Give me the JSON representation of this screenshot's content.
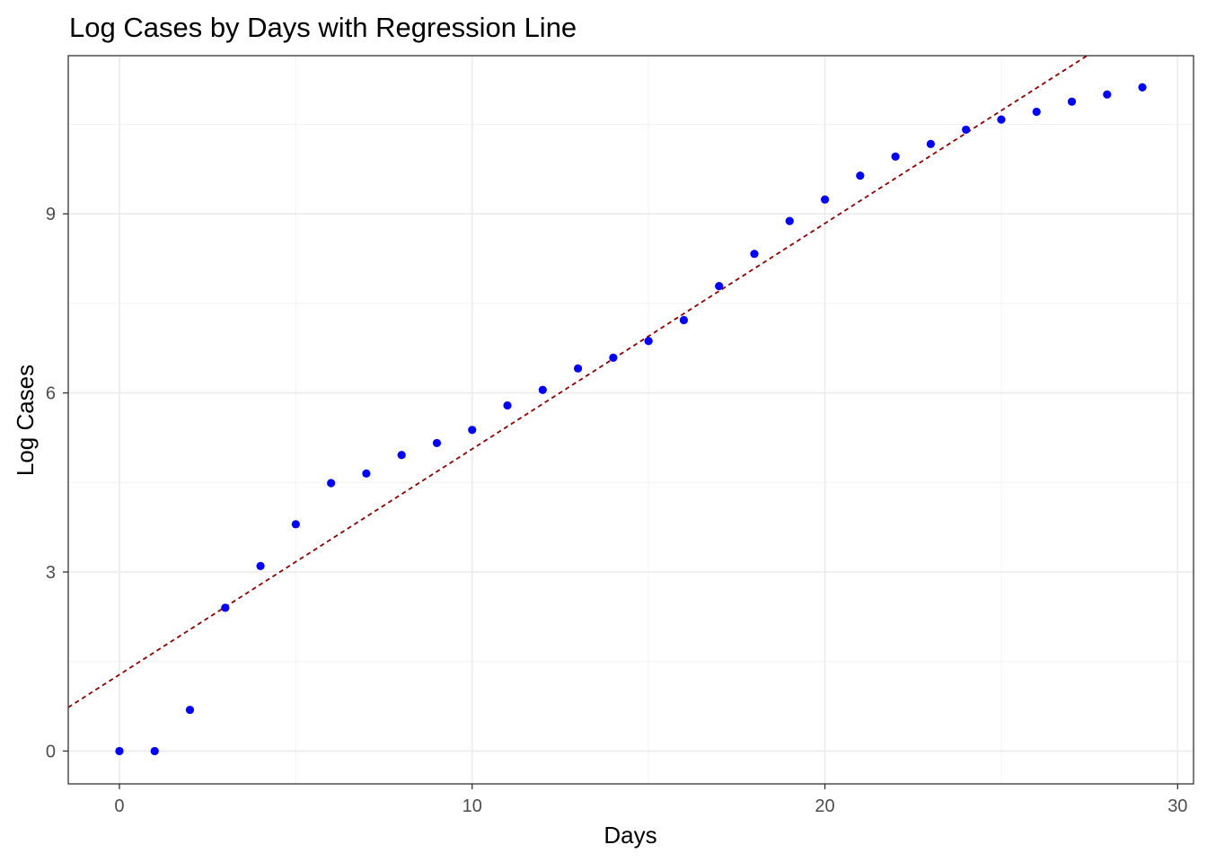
{
  "chart_data": {
    "type": "scatter",
    "title": "Log Cases by Days with Regression Line",
    "xlabel": "Days",
    "ylabel": "Log Cases",
    "xlim": [
      -1.45,
      30.45
    ],
    "ylim": [
      -0.55,
      11.65
    ],
    "xticks": [
      0,
      10,
      20,
      30
    ],
    "yticks": [
      0,
      3,
      6,
      9
    ],
    "x_tick_labels": [
      "0",
      "10",
      "20",
      "30"
    ],
    "y_tick_labels": [
      "0",
      "3",
      "6",
      "9"
    ],
    "grid": true,
    "point_color": "#0000ff",
    "line_color": "#8b0000",
    "points": [
      {
        "x": 0,
        "y": 0.0
      },
      {
        "x": 1,
        "y": 0.0
      },
      {
        "x": 2,
        "y": 0.69
      },
      {
        "x": 3,
        "y": 2.4
      },
      {
        "x": 4,
        "y": 3.1
      },
      {
        "x": 5,
        "y": 3.8
      },
      {
        "x": 6,
        "y": 4.49
      },
      {
        "x": 7,
        "y": 4.65
      },
      {
        "x": 8,
        "y": 4.96
      },
      {
        "x": 9,
        "y": 5.16
      },
      {
        "x": 10,
        "y": 5.38
      },
      {
        "x": 11,
        "y": 5.79
      },
      {
        "x": 12,
        "y": 6.05
      },
      {
        "x": 13,
        "y": 6.41
      },
      {
        "x": 14,
        "y": 6.59
      },
      {
        "x": 15,
        "y": 6.87
      },
      {
        "x": 16,
        "y": 7.22
      },
      {
        "x": 17,
        "y": 7.79
      },
      {
        "x": 18,
        "y": 8.33
      },
      {
        "x": 19,
        "y": 8.88
      },
      {
        "x": 20,
        "y": 9.24
      },
      {
        "x": 21,
        "y": 9.64
      },
      {
        "x": 22,
        "y": 9.96
      },
      {
        "x": 23,
        "y": 10.17
      },
      {
        "x": 24,
        "y": 10.41
      },
      {
        "x": 25,
        "y": 10.58
      },
      {
        "x": 26,
        "y": 10.71
      },
      {
        "x": 27,
        "y": 10.88
      },
      {
        "x": 28,
        "y": 11.0
      },
      {
        "x": 29,
        "y": 11.12
      }
    ],
    "regression": {
      "intercept": 1.28,
      "slope": 0.378,
      "style": "dashed"
    }
  }
}
